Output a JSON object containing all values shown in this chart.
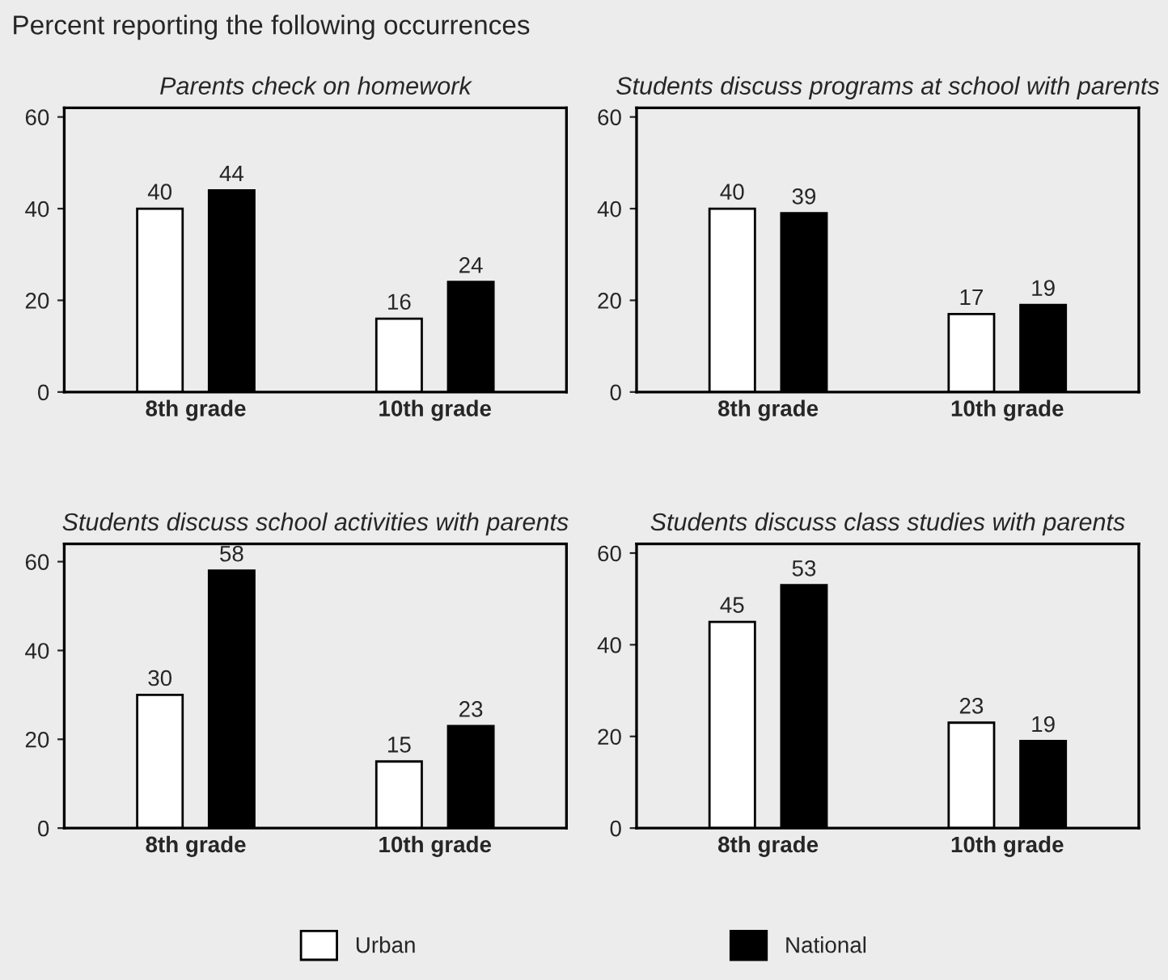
{
  "chart_data": [
    {
      "type": "bar",
      "title": "Parents check on homework",
      "categories": [
        "8th grade",
        "10th grade"
      ],
      "ylim": [
        0,
        62
      ],
      "yticks": [
        0,
        20,
        40,
        60
      ],
      "grid": false,
      "data_labels": true,
      "legend": "bottom",
      "annotations": [
        "Percent reporting the following occurrences"
      ],
      "series": [
        {
          "name": "Urban",
          "color": "#ffffff",
          "values": [
            40,
            16
          ]
        },
        {
          "name": "National",
          "color": "#000000",
          "values": [
            44,
            24
          ]
        }
      ]
    },
    {
      "type": "bar",
      "title": "Students discuss programs at school with parents",
      "categories": [
        "8th grade",
        "10th grade"
      ],
      "ylim": [
        0,
        62
      ],
      "yticks": [
        0,
        20,
        40,
        60
      ],
      "grid": false,
      "data_labels": true,
      "series": [
        {
          "color": "#ffffff",
          "values": [
            40,
            17
          ]
        },
        {
          "color": "#000000",
          "values": [
            39,
            19
          ]
        }
      ]
    },
    {
      "type": "bar",
      "title": "Students discuss school activities with parents",
      "categories": [
        "8th grade",
        "10th grade"
      ],
      "ylim": [
        0,
        64
      ],
      "yticks": [
        0,
        20,
        40,
        60
      ],
      "grid": false,
      "data_labels": true,
      "series": [
        {
          "color": "#ffffff",
          "values": [
            30,
            15
          ]
        },
        {
          "color": "#000000",
          "values": [
            58,
            23
          ]
        }
      ]
    },
    {
      "type": "bar",
      "title": "Students discuss class studies with parents",
      "categories": [
        "8th grade",
        "10th grade"
      ],
      "ylim": [
        0,
        62
      ],
      "yticks": [
        0,
        20,
        40,
        60
      ],
      "grid": false,
      "data_labels": true,
      "series": [
        {
          "color": "#ffffff",
          "values": [
            45,
            23
          ]
        },
        {
          "color": "#000000",
          "values": [
            53,
            19
          ]
        }
      ]
    }
  ]
}
